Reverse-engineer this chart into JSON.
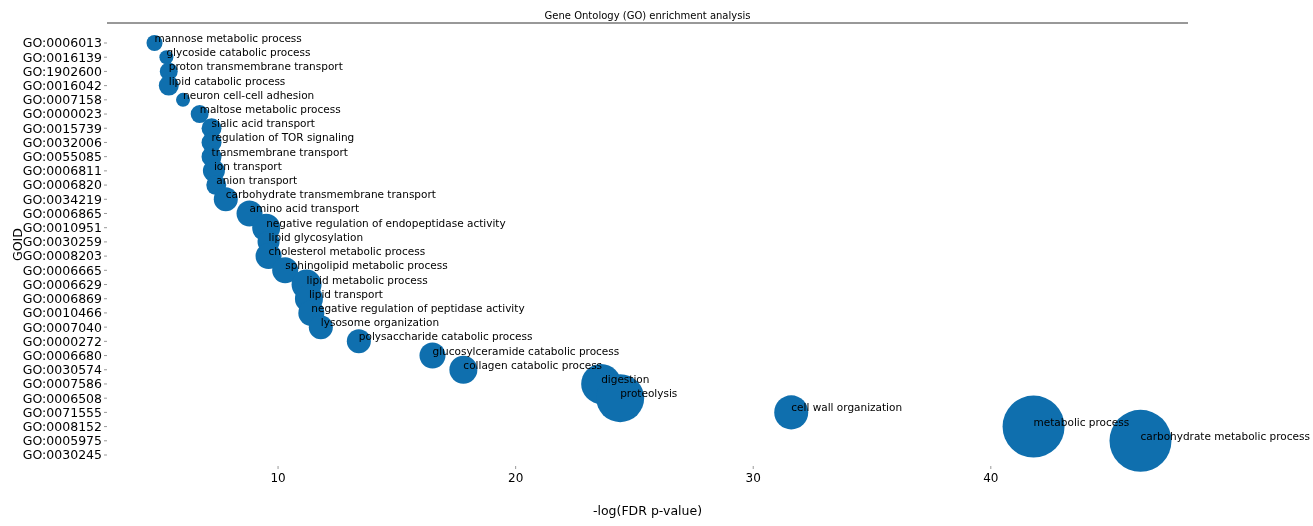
{
  "chart_data": {
    "type": "bubble",
    "title": "Gene Ontology (GO) enrichment analysis",
    "xlabel": "-log(FDR p-value)",
    "ylabel": "GOID",
    "categories": [
      "GO:0006013",
      "GO:0016139",
      "GO:1902600",
      "GO:0016042",
      "GO:0007158",
      "GO:0000023",
      "GO:0015739",
      "GO:0032006",
      "GO:0055085",
      "GO:0006811",
      "GO:0006820",
      "GO:0034219",
      "GO:0006865",
      "GO:0010951",
      "GO:0030259",
      "GO:0008203",
      "GO:0006665",
      "GO:0006629",
      "GO:0006869",
      "GO:0010466",
      "GO:0007040",
      "GO:0000272",
      "GO:0006680",
      "GO:0030574",
      "GO:0007586",
      "GO:0006508",
      "GO:0071555",
      "GO:0008152",
      "GO:0005975",
      "GO:0030245"
    ],
    "values": [
      4.8,
      5.3,
      5.4,
      5.4,
      6.0,
      6.7,
      7.2,
      7.2,
      7.2,
      7.3,
      7.4,
      7.8,
      8.8,
      9.5,
      9.6,
      9.6,
      10.3,
      11.2,
      11.3,
      11.4,
      11.8,
      13.4,
      16.5,
      17.8,
      23.6,
      24.4,
      31.6,
      41.8,
      46.3,
      null
    ],
    "sizes": [
      0.067,
      0.051,
      0.084,
      0.104,
      0.051,
      0.084,
      0.104,
      0.104,
      0.104,
      0.126,
      0.104,
      0.15,
      0.176,
      0.204,
      0.126,
      0.176,
      0.176,
      0.234,
      0.204,
      0.176,
      0.15,
      0.15,
      0.176,
      0.204,
      0.416,
      0.599,
      0.301,
      1,
      1,
      null
    ],
    "color": "#0f6fae",
    "xlim": [
      2.8,
      48.3
    ],
    "xticks": [
      10,
      20,
      30,
      40
    ],
    "grid": false,
    "orientation": "horizontal",
    "annotations": [
      {
        "text": "mannose metabolic process",
        "x": 4.8,
        "y": "GO:0006013"
      },
      {
        "text": "glycoside catabolic process",
        "x": 5.3,
        "y": "GO:0016139"
      },
      {
        "text": "proton transmembrane transport",
        "x": 5.4,
        "y": "GO:1902600"
      },
      {
        "text": "lipid catabolic process",
        "x": 5.4,
        "y": "GO:0016042"
      },
      {
        "text": "neuron cell-cell adhesion",
        "x": 6.0,
        "y": "GO:0007158"
      },
      {
        "text": "maltose metabolic process",
        "x": 6.7,
        "y": "GO:0000023"
      },
      {
        "text": "sialic acid transport",
        "x": 7.2,
        "y": "GO:0015739"
      },
      {
        "text": "regulation of TOR signaling",
        "x": 7.2,
        "y": "GO:0032006"
      },
      {
        "text": "transmembrane transport",
        "x": 7.2,
        "y": "GO:0055085"
      },
      {
        "text": "ion transport",
        "x": 7.3,
        "y": "GO:0006811"
      },
      {
        "text": "anion transport",
        "x": 7.4,
        "y": "GO:0006820"
      },
      {
        "text": "carbohydrate transmembrane transport",
        "x": 7.8,
        "y": "GO:0034219"
      },
      {
        "text": "amino acid transport",
        "x": 8.8,
        "y": "GO:0006865"
      },
      {
        "text": "negative regulation of endopeptidase activity",
        "x": 9.5,
        "y": "GO:0010951"
      },
      {
        "text": "lipid glycosylation",
        "x": 9.6,
        "y": "GO:0030259"
      },
      {
        "text": "cholesterol metabolic process",
        "x": 9.6,
        "y": "GO:0008203"
      },
      {
        "text": "sphingolipid metabolic process",
        "x": 10.3,
        "y": "GO:0006665"
      },
      {
        "text": "lipid metabolic process",
        "x": 11.2,
        "y": "GO:0006629"
      },
      {
        "text": "lipid transport",
        "x": 11.3,
        "y": "GO:0006869"
      },
      {
        "text": "negative regulation of peptidase activity",
        "x": 11.4,
        "y": "GO:0010466"
      },
      {
        "text": "lysosome organization",
        "x": 11.8,
        "y": "GO:0007040"
      },
      {
        "text": "polysaccharide catabolic process",
        "x": 13.4,
        "y": "GO:0000272"
      },
      {
        "text": "glucosylceramide catabolic process",
        "x": 16.5,
        "y": "GO:0006680"
      },
      {
        "text": "collagen catabolic process",
        "x": 17.8,
        "y": "GO:0030574"
      },
      {
        "text": "digestion",
        "x": 23.6,
        "y": "GO:0007586"
      },
      {
        "text": "proteolysis",
        "x": 24.4,
        "y": "GO:0006508"
      },
      {
        "text": "cell wall organization",
        "x": 31.6,
        "y": "GO:0071555"
      },
      {
        "text": "metabolic process",
        "x": 41.8,
        "y": "GO:0008152"
      },
      {
        "text": "carbohydrate metabolic process",
        "x": 46.3,
        "y": "GO:0005975"
      }
    ]
  }
}
